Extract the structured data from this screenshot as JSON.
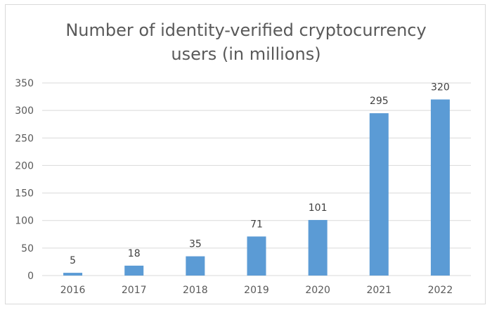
{
  "chart_data": {
    "type": "bar",
    "title": "Number of identity-verified cryptocurrency users (in millions)",
    "title_lines": [
      "Number of identity-verified cryptocurrency",
      "users (in millions)"
    ],
    "categories": [
      "2016",
      "2017",
      "2018",
      "2019",
      "2020",
      "2021",
      "2022"
    ],
    "values": [
      5,
      18,
      35,
      71,
      101,
      295,
      320
    ],
    "data_labels": [
      "5",
      "18",
      "35",
      "71",
      "101",
      "295",
      "320"
    ],
    "xlabel": "",
    "ylabel": "",
    "ylim": [
      0,
      350
    ],
    "yticks": [
      0,
      50,
      100,
      150,
      200,
      250,
      300,
      350
    ],
    "grid": true,
    "legend": "none",
    "bar_color": "#5b9bd5",
    "grid_color": "#d9d9d9"
  }
}
